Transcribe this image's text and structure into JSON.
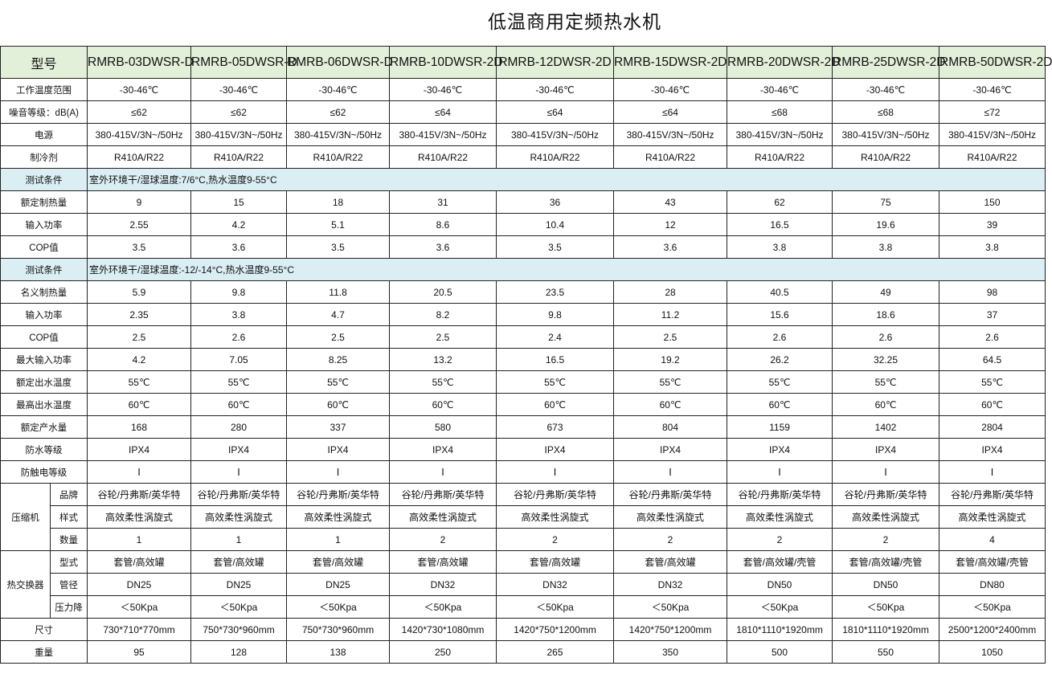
{
  "title": "低温商用定频热水机",
  "header": {
    "label": "型号",
    "models": [
      "RMRB-03DWSR-D",
      "RMRB-05DWSR-D",
      "RMRB-06DWSR-D",
      "RMRB-10DWSR-2D",
      "RMRB-12DWSR-2D",
      "RMRB-15DWSR-2D",
      "RMRB-20DWSR-2D",
      "RMRB-25DWSR-2D",
      "RMRB-50DWSR-2D"
    ]
  },
  "colors": {
    "header_bg": "#e2efd9",
    "condition_bg": "#daeef3"
  },
  "rows": [
    {
      "label": "工作温度范围",
      "values": [
        "-30-46℃",
        "-30-46℃",
        "-30-46℃",
        "-30-46℃",
        "-30-46℃",
        "-30-46℃",
        "-30-46℃",
        "-30-46℃",
        "-30-46℃"
      ]
    },
    {
      "label": "噪音等级：dB(A)",
      "values": [
        "≤62",
        "≤62",
        "≤62",
        "≤64",
        "≤64",
        "≤64",
        "≤68",
        "≤68",
        "≤72"
      ]
    },
    {
      "label": "电源",
      "values": [
        "380-415V/3N~/50Hz",
        "380-415V/3N~/50Hz",
        "380-415V/3N~/50Hz",
        "380-415V/3N~/50Hz",
        "380-415V/3N~/50Hz",
        "380-415V/3N~/50Hz",
        "380-415V/3N~/50Hz",
        "380-415V/3N~/50Hz",
        "380-415V/3N~/50Hz"
      ]
    },
    {
      "label": "制冷剂",
      "values": [
        "R410A/R22",
        "R410A/R22",
        "R410A/R22",
        "R410A/R22",
        "R410A/R22",
        "R410A/R22",
        "R410A/R22",
        "R410A/R22",
        "R410A/R22"
      ]
    },
    {
      "label": "测试条件",
      "condition": "室外环境干/湿球温度:7/6°C,热水温度9-55°C"
    },
    {
      "label": "额定制热量",
      "values": [
        "9",
        "15",
        "18",
        "31",
        "36",
        "43",
        "62",
        "75",
        "150"
      ]
    },
    {
      "label": "输入功率",
      "values": [
        "2.55",
        "4.2",
        "5.1",
        "8.6",
        "10.4",
        "12",
        "16.5",
        "19.6",
        "39"
      ]
    },
    {
      "label": "COP值",
      "values": [
        "3.5",
        "3.6",
        "3.5",
        "3.6",
        "3.5",
        "3.6",
        "3.8",
        "3.8",
        "3.8"
      ]
    },
    {
      "label": "测试条件",
      "condition": "室外环境干/湿球温度:-12/-14°C,热水温度9-55°C"
    },
    {
      "label": "名义制热量",
      "values": [
        "5.9",
        "9.8",
        "11.8",
        "20.5",
        "23.5",
        "28",
        "40.5",
        "49",
        "98"
      ]
    },
    {
      "label": "输入功率",
      "values": [
        "2.35",
        "3.8",
        "4.7",
        "8.2",
        "9.8",
        "11.2",
        "15.6",
        "18.6",
        "37"
      ]
    },
    {
      "label": "COP值",
      "values": [
        "2.5",
        "2.6",
        "2.5",
        "2.5",
        "2.4",
        "2.5",
        "2.6",
        "2.6",
        "2.6"
      ]
    },
    {
      "label": "最大输入功率",
      "values": [
        "4.2",
        "7.05",
        "8.25",
        "13.2",
        "16.5",
        "19.2",
        "26.2",
        "32.25",
        "64.5"
      ]
    },
    {
      "label": "额定出水温度",
      "values": [
        "55℃",
        "55℃",
        "55℃",
        "55℃",
        "55℃",
        "55℃",
        "55℃",
        "55℃",
        "55℃"
      ]
    },
    {
      "label": "最高出水温度",
      "values": [
        "60℃",
        "60℃",
        "60℃",
        "60℃",
        "60℃",
        "60℃",
        "60℃",
        "60℃",
        "60℃"
      ]
    },
    {
      "label": "额定产水量",
      "values": [
        "168",
        "280",
        "337",
        "580",
        "673",
        "804",
        "1159",
        "1402",
        "2804"
      ]
    },
    {
      "label": "防水等级",
      "values": [
        "IPX4",
        "IPX4",
        "IPX4",
        "IPX4",
        "IPX4",
        "IPX4",
        "IPX4",
        "IPX4",
        "IPX4"
      ]
    },
    {
      "label": "防触电等级",
      "values": [
        "Ⅰ",
        "Ⅰ",
        "Ⅰ",
        "Ⅰ",
        "Ⅰ",
        "Ⅰ",
        "Ⅰ",
        "Ⅰ",
        "Ⅰ"
      ]
    },
    {
      "group": "压缩机",
      "label": "品牌",
      "values": [
        "谷轮/丹弗斯/英华特",
        "谷轮/丹弗斯/英华特",
        "谷轮/丹弗斯/英华特",
        "谷轮/丹弗斯/英华特",
        "谷轮/丹弗斯/英华特",
        "谷轮/丹弗斯/英华特",
        "谷轮/丹弗斯/英华特",
        "谷轮/丹弗斯/英华特",
        "谷轮/丹弗斯/英华特"
      ]
    },
    {
      "group": "压缩机",
      "label": "样式",
      "values": [
        "高效柔性涡旋式",
        "高效柔性涡旋式",
        "高效柔性涡旋式",
        "高效柔性涡旋式",
        "高效柔性涡旋式",
        "高效柔性涡旋式",
        "高效柔性涡旋式",
        "高效柔性涡旋式",
        "高效柔性涡旋式"
      ]
    },
    {
      "group": "压缩机",
      "label": "数量",
      "values": [
        "1",
        "1",
        "1",
        "2",
        "2",
        "2",
        "2",
        "2",
        "4"
      ]
    },
    {
      "group": "热交换器",
      "label": "型式",
      "values": [
        "套管/高效罐",
        "套管/高效罐",
        "套管/高效罐",
        "套管/高效罐",
        "套管/高效罐",
        "套管/高效罐",
        "套管/高效罐/壳管",
        "套管/高效罐/壳管",
        "套管/高效罐/壳管"
      ]
    },
    {
      "group": "热交换器",
      "label": "管径",
      "values": [
        "DN25",
        "DN25",
        "DN25",
        "DN32",
        "DN32",
        "DN32",
        "DN50",
        "DN50",
        "DN80"
      ]
    },
    {
      "group": "热交换器",
      "label": "压力降",
      "values": [
        "＜50Kpa",
        "＜50Kpa",
        "＜50Kpa",
        "＜50Kpa",
        "＜50Kpa",
        "＜50Kpa",
        "＜50Kpa",
        "＜50Kpa",
        "＜50Kpa"
      ]
    },
    {
      "label": "尺寸",
      "values": [
        "730*710*770mm",
        "750*730*960mm",
        "750*730*960mm",
        "1420*730*1080mm",
        "1420*750*1200mm",
        "1420*750*1200mm",
        "1810*1110*1920mm",
        "1810*1110*1920mm",
        "2500*1200*2400mm"
      ]
    },
    {
      "label": "重量",
      "values": [
        "95",
        "128",
        "138",
        "250",
        "265",
        "350",
        "500",
        "550",
        "1050"
      ]
    }
  ]
}
